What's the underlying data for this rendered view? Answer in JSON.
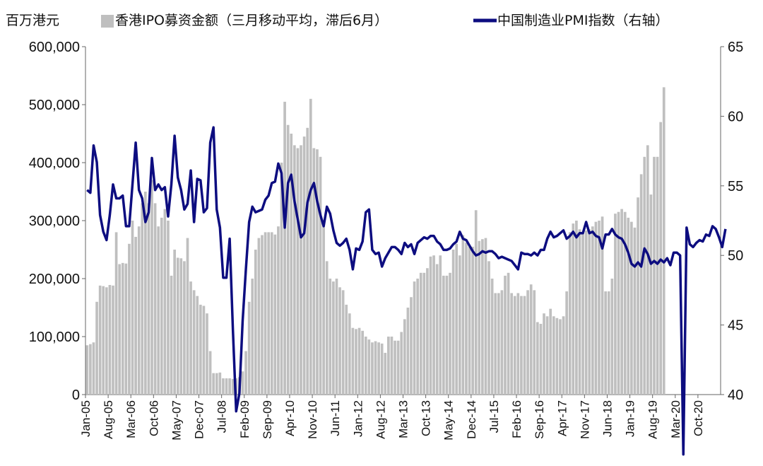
{
  "chart_data": {
    "type": "bar+line",
    "unit_label": "百万港元",
    "legend_position": "top",
    "grid": false,
    "y_left": {
      "range": [
        0,
        600000
      ],
      "ticks": [
        0,
        100000,
        200000,
        300000,
        400000,
        500000,
        600000
      ],
      "tick_labels": [
        "0",
        "100,000",
        "200,000",
        "300,000",
        "400,000",
        "500,000",
        "600,000"
      ]
    },
    "y_right": {
      "range": [
        40,
        65
      ],
      "ticks": [
        40,
        45,
        50,
        55,
        60,
        65
      ],
      "tick_labels": [
        "40",
        "45",
        "50",
        "55",
        "60",
        "65"
      ]
    },
    "x": {
      "start": "2005-01",
      "end": "2021-04",
      "tick_labels": [
        "Jan-05",
        "Aug-05",
        "Mar-06",
        "Oct-06",
        "May-07",
        "Dec-07",
        "Jul-08",
        "Feb-09",
        "Sep-09",
        "Apr-10",
        "Nov-10",
        "Jun-11",
        "Jan-12",
        "Aug-12",
        "Mar-13",
        "Oct-13",
        "May-14",
        "Dec-14",
        "Jul-15",
        "Feb-16",
        "Sep-16",
        "Apr-17",
        "Nov-17",
        "Jun-18",
        "Jan-19",
        "Aug-19",
        "Mar-20",
        "Oct-20"
      ]
    },
    "series": [
      {
        "name": "香港IPO募资金额（三月移动平均，滞后6月）",
        "kind": "bar",
        "axis": "left",
        "color": "#bfbfbf",
        "values": [
          85000,
          87000,
          90000,
          160000,
          188000,
          187000,
          185000,
          189000,
          188000,
          280000,
          225000,
          227000,
          226000,
          260000,
          300000,
          272000,
          290000,
          330000,
          350000,
          330000,
          370000,
          330000,
          290000,
          305000,
          320000,
          300000,
          205000,
          250000,
          236000,
          235000,
          230000,
          270000,
          195000,
          180000,
          170000,
          155000,
          153000,
          140000,
          75000,
          37000,
          37000,
          38000,
          28000,
          28000,
          28000,
          27000,
          28000,
          30000,
          40000,
          75000,
          160000,
          200000,
          250000,
          270000,
          275000,
          280000,
          280000,
          280000,
          276000,
          290000,
          400000,
          505000,
          465000,
          450000,
          430000,
          425000,
          430000,
          445000,
          460000,
          510000,
          425000,
          423000,
          410000,
          300000,
          230000,
          200000,
          195000,
          200000,
          185000,
          180000,
          155000,
          140000,
          115000,
          113000,
          115000,
          110000,
          100000,
          95000,
          90000,
          92000,
          90000,
          88000,
          72000,
          100000,
          100000,
          93000,
          93000,
          108000,
          130000,
          150000,
          168000,
          195000,
          200000,
          210000,
          210000,
          218000,
          238000,
          240000,
          225000,
          240000,
          205000,
          205000,
          210000,
          250000,
          260000,
          240000,
          275000,
          262000,
          255000,
          255000,
          318000,
          265000,
          268000,
          270000,
          230000,
          200000,
          175000,
          175000,
          180000,
          205000,
          210000,
          175000,
          170000,
          175000,
          170000,
          170000,
          180000,
          190000,
          180000,
          125000,
          122000,
          140000,
          135000,
          148000,
          135000,
          132000,
          130000,
          135000,
          178000,
          280000,
          295000,
          300000,
          285000,
          280000,
          283000,
          285000,
          290000,
          298000,
          300000,
          307000,
          178000,
          178000,
          200000,
          312000,
          315000,
          320000,
          315000,
          305000,
          298000,
          288000,
          340000,
          380000,
          410000,
          430000,
          345000,
          410000,
          410000,
          470000,
          530000
        ],
        "last_bar": "2020-12"
      },
      {
        "name": "中国制造业PMI指数（右轴）",
        "kind": "line",
        "axis": "right",
        "color": "#0d0d80",
        "values": [
          54.7,
          54.5,
          57.9,
          56.7,
          52.9,
          51.7,
          51.1,
          52.9,
          55.1,
          54.1,
          54.1,
          54.3,
          52.1,
          52.1,
          55.1,
          58.1,
          54.7,
          54.1,
          52.4,
          53.1,
          57.0,
          54.7,
          55.1,
          54.7,
          54.9,
          52.8,
          55.1,
          58.6,
          55.6,
          54.7,
          53.3,
          53.7,
          56.1,
          52.4,
          55.5,
          55.4,
          53.1,
          53.4,
          58.1,
          59.2,
          53.3,
          52.0,
          48.4,
          48.4,
          51.2,
          44.6,
          38.8,
          40.1,
          45.3,
          49.0,
          52.4,
          53.5,
          53.1,
          53.2,
          53.3,
          54.0,
          54.3,
          55.2,
          55.3,
          56.6,
          55.9,
          52.0,
          55.2,
          55.8,
          53.9,
          52.6,
          51.3,
          51.6,
          53.8,
          54.7,
          55.2,
          53.9,
          52.9,
          52.1,
          53.5,
          53.0,
          51.8,
          50.9,
          50.7,
          50.9,
          51.2,
          50.4,
          49.0,
          50.5,
          50.4,
          51.0,
          53.1,
          53.3,
          50.4,
          50.1,
          50.2,
          49.2,
          49.8,
          50.2,
          50.6,
          50.6,
          50.4,
          50.1,
          50.9,
          50.6,
          50.8,
          50.1,
          50.9,
          51.1,
          51.3,
          51.2,
          51.4,
          51.4,
          51.0,
          50.8,
          50.4,
          50.4,
          50.5,
          50.8,
          51.0,
          51.7,
          51.2,
          51.1,
          50.7,
          50.3,
          50.0,
          50.1,
          50.3,
          50.2,
          50.3,
          50.3,
          50.1,
          49.8,
          49.9,
          49.8,
          49.7,
          49.6,
          49.3,
          49.0,
          50.2,
          50.1,
          50.1,
          50.0,
          50.2,
          50.0,
          50.4,
          50.4,
          51.2,
          51.7,
          51.3,
          51.4,
          51.6,
          51.8,
          51.2,
          51.4,
          51.7,
          51.3,
          51.6,
          51.6,
          52.4,
          51.6,
          51.7,
          51.4,
          51.3,
          50.5,
          51.5,
          51.5,
          51.9,
          51.5,
          51.3,
          51.2,
          50.8,
          50.2,
          49.4,
          49.2,
          49.5,
          49.2,
          50.5,
          50.1,
          49.4,
          49.6,
          49.4,
          49.7,
          49.5,
          49.8,
          49.3,
          50.2,
          50.2,
          50.0,
          35.7,
          52.0,
          50.8,
          50.6,
          50.9,
          51.1,
          51.0,
          51.5,
          51.4,
          52.1,
          51.9,
          51.3,
          50.6,
          51.9
        ],
        "last_point": "2021-04"
      }
    ]
  }
}
